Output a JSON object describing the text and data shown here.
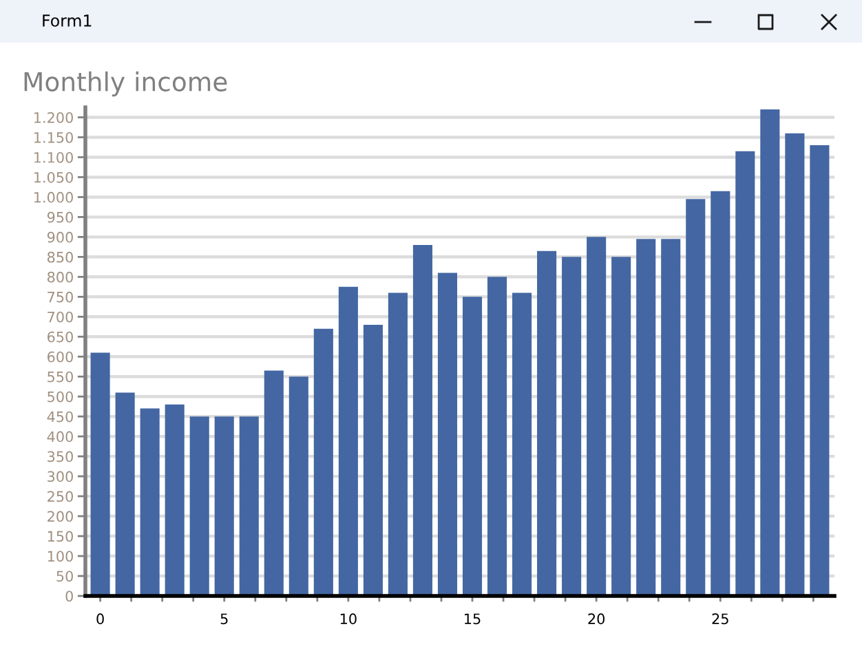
{
  "chart_data": {
    "type": "bar",
    "title": "Monthly income",
    "annotations": [
      "Form1"
    ],
    "x": [
      0,
      1,
      2,
      3,
      4,
      5,
      6,
      7,
      8,
      9,
      10,
      11,
      12,
      13,
      14,
      15,
      16,
      17,
      18,
      19,
      20,
      21,
      22,
      23,
      24,
      25,
      26,
      27,
      28,
      29
    ],
    "values": [
      610,
      510,
      470,
      480,
      450,
      450,
      450,
      565,
      550,
      670,
      775,
      680,
      760,
      880,
      810,
      750,
      800,
      760,
      865,
      850,
      900,
      850,
      895,
      895,
      995,
      1015,
      1115,
      1220,
      1160,
      1130
    ],
    "color": "#4467a3",
    "xlim": [
      -0.6,
      29.6
    ],
    "xticks": [
      0,
      {
        "value": 1.25,
        "label": null
      },
      {
        "value": 2.5,
        "label": null
      },
      {
        "value": 3.75,
        "label": null
      },
      5,
      {
        "value": 6.25,
        "label": null
      },
      {
        "value": 7.5,
        "label": null
      },
      {
        "value": 8.75,
        "label": null
      },
      10,
      {
        "value": 11.25,
        "label": null
      },
      {
        "value": 12.5,
        "label": null
      },
      {
        "value": 13.75,
        "label": null
      },
      15,
      {
        "value": 16.25,
        "label": null
      },
      {
        "value": 17.5,
        "label": null
      },
      {
        "value": 18.75,
        "label": null
      },
      20,
      {
        "value": 21.25,
        "label": null
      },
      {
        "value": 22.5,
        "label": null
      },
      {
        "value": 23.75,
        "label": null
      },
      25,
      {
        "value": 26.25,
        "label": null
      },
      {
        "value": 27.5,
        "label": null
      },
      {
        "value": 28.75,
        "label": null
      }
    ],
    "ylim": [
      0,
      1225
    ],
    "yticks": [
      0,
      50,
      100,
      150,
      200,
      250,
      300,
      350,
      400,
      450,
      500,
      550,
      600,
      650,
      700,
      750,
      800,
      850,
      900,
      950,
      {
        "value": 1000,
        "label": "1.000"
      },
      {
        "value": 1050,
        "label": "1.050"
      },
      {
        "value": 1100,
        "label": "1.100"
      },
      {
        "value": 1150,
        "label": "1.150"
      },
      {
        "value": 1200,
        "label": "1.200"
      }
    ],
    "grid": "y"
  }
}
